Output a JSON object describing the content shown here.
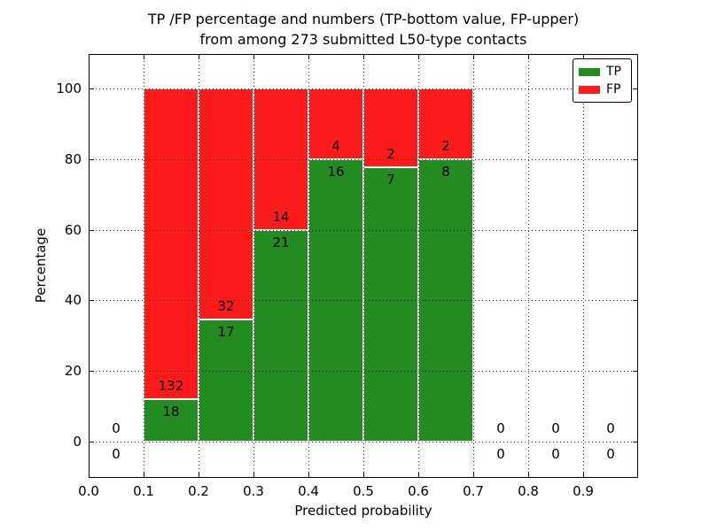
{
  "chart_data": {
    "type": "bar",
    "stacked": true,
    "title_lines": [
      "TP /FP percentage and numbers (TP-bottom value, FP-upper)",
      "from among 273 submitted L50-type contacts"
    ],
    "xlabel": "Predicted probability",
    "ylabel": "Percentage",
    "total_submitted": 273,
    "xlim": [
      0.0,
      1.0
    ],
    "ylim": [
      -10.3,
      109.8
    ],
    "xtick_values": [
      0.0,
      0.1,
      0.2,
      0.3,
      0.4,
      0.5,
      0.6,
      0.7,
      0.8,
      0.9
    ],
    "xtick_labels": [
      "0.0",
      "0.1",
      "0.2",
      "0.3",
      "0.4",
      "0.5",
      "0.6",
      "0.7",
      "0.8",
      "0.9"
    ],
    "ytick_values": [
      0,
      20,
      40,
      60,
      80,
      100
    ],
    "ytick_labels": [
      "0",
      "20",
      "40",
      "60",
      "80",
      "100"
    ],
    "grid": {
      "visible": true,
      "line_style": "dotted",
      "color": "#000000",
      "on_top_of_bars": true
    },
    "bar_edge_color": "#ffffff",
    "colors": {
      "tp": "#228b22",
      "fp": "#fb1b1b"
    },
    "bin_width": 0.1,
    "bins": [
      {
        "range": "0.0-0.1",
        "x_start": 0.0,
        "tp_count": 0,
        "fp_count": 0,
        "tp_pct": 0.0,
        "fp_pct": 0.0
      },
      {
        "range": "0.1-0.2",
        "x_start": 0.1,
        "tp_count": 18,
        "fp_count": 132,
        "tp_pct": 12.0,
        "fp_pct": 88.0
      },
      {
        "range": "0.2-0.3",
        "x_start": 0.2,
        "tp_count": 17,
        "fp_count": 32,
        "tp_pct": 34.7,
        "fp_pct": 65.3
      },
      {
        "range": "0.3-0.4",
        "x_start": 0.3,
        "tp_count": 21,
        "fp_count": 14,
        "tp_pct": 60.0,
        "fp_pct": 40.0
      },
      {
        "range": "0.4-0.5",
        "x_start": 0.4,
        "tp_count": 16,
        "fp_count": 4,
        "tp_pct": 80.0,
        "fp_pct": 20.0
      },
      {
        "range": "0.5-0.6",
        "x_start": 0.5,
        "tp_count": 7,
        "fp_count": 2,
        "tp_pct": 77.8,
        "fp_pct": 22.2
      },
      {
        "range": "0.6-0.7",
        "x_start": 0.6,
        "tp_count": 8,
        "fp_count": 2,
        "tp_pct": 80.0,
        "fp_pct": 20.0
      },
      {
        "range": "0.7-0.8",
        "x_start": 0.7,
        "tp_count": 0,
        "fp_count": 0,
        "tp_pct": 0.0,
        "fp_pct": 0.0
      },
      {
        "range": "0.8-0.9",
        "x_start": 0.8,
        "tp_count": 0,
        "fp_count": 0,
        "tp_pct": 0.0,
        "fp_pct": 0.0
      },
      {
        "range": "0.9-1.0",
        "x_start": 0.9,
        "tp_count": 0,
        "fp_count": 0,
        "tp_pct": 0.0,
        "fp_pct": 0.0
      }
    ],
    "legend": {
      "position": "upper right",
      "entries": [
        {
          "label": "TP",
          "color": "#228b22"
        },
        {
          "label": "FP",
          "color": "#fb1b1b"
        }
      ]
    }
  }
}
